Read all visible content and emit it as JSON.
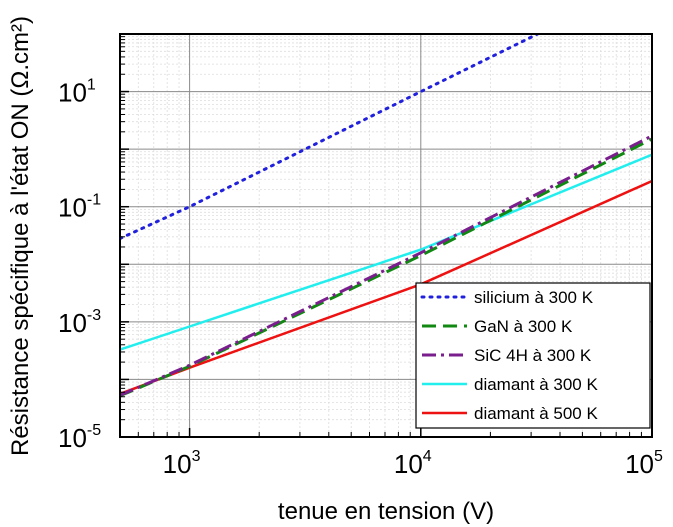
{
  "chart_data": {
    "type": "line",
    "title": "",
    "xlabel": "tenue en tension (V)",
    "ylabel": "Résistance spécifique à l'état ON (Ω.cm²)",
    "xscale": "log",
    "yscale": "log",
    "xlim": [
      500,
      100000
    ],
    "ylim": [
      1e-05,
      100
    ],
    "grid": true,
    "legend_position": "bottom-right",
    "x_ticks": [
      {
        "base": "10",
        "exp": "3",
        "value": 1000
      },
      {
        "base": "10",
        "exp": "4",
        "value": 10000
      },
      {
        "base": "10",
        "exp": "5",
        "value": 100000
      }
    ],
    "y_ticks": [
      {
        "base": "10",
        "exp": "-5",
        "value": 1e-05
      },
      {
        "base": "10",
        "exp": "-3",
        "value": 0.001
      },
      {
        "base": "10",
        "exp": "-1",
        "value": 0.1
      },
      {
        "base": "10",
        "exp": "1",
        "value": 10
      }
    ],
    "series": [
      {
        "name": "silicium à 300 K",
        "color": "#2020dd",
        "style": "dotted",
        "x": [
          500,
          1000,
          10000,
          32000
        ],
        "y": [
          0.028,
          0.1,
          10,
          100
        ]
      },
      {
        "name": "GaN à 300 K",
        "color": "#118811",
        "style": "dashed",
        "x": [
          500,
          1000,
          10000,
          100000
        ],
        "y": [
          5.2e-05,
          0.000169,
          0.0142,
          1.5
        ]
      },
      {
        "name": "SiC 4H à 300 K",
        "color": "#7a1e8e",
        "style": "dashdot",
        "x": [
          500,
          1000,
          10000,
          100000
        ],
        "y": [
          5.3e-05,
          0.000176,
          0.0158,
          1.7
        ]
      },
      {
        "name": "diamant à 300 K",
        "color": "#22eeee",
        "style": "solid",
        "x": [
          500,
          1000,
          10000,
          100000
        ],
        "y": [
          0.00033,
          0.00083,
          0.018,
          0.8
        ]
      },
      {
        "name": "diamant à 500 K",
        "color": "#ee1111",
        "style": "solid",
        "x": [
          500,
          1000,
          10000,
          100000
        ],
        "y": [
          5.6e-05,
          0.00016,
          0.0045,
          0.28
        ]
      }
    ]
  }
}
